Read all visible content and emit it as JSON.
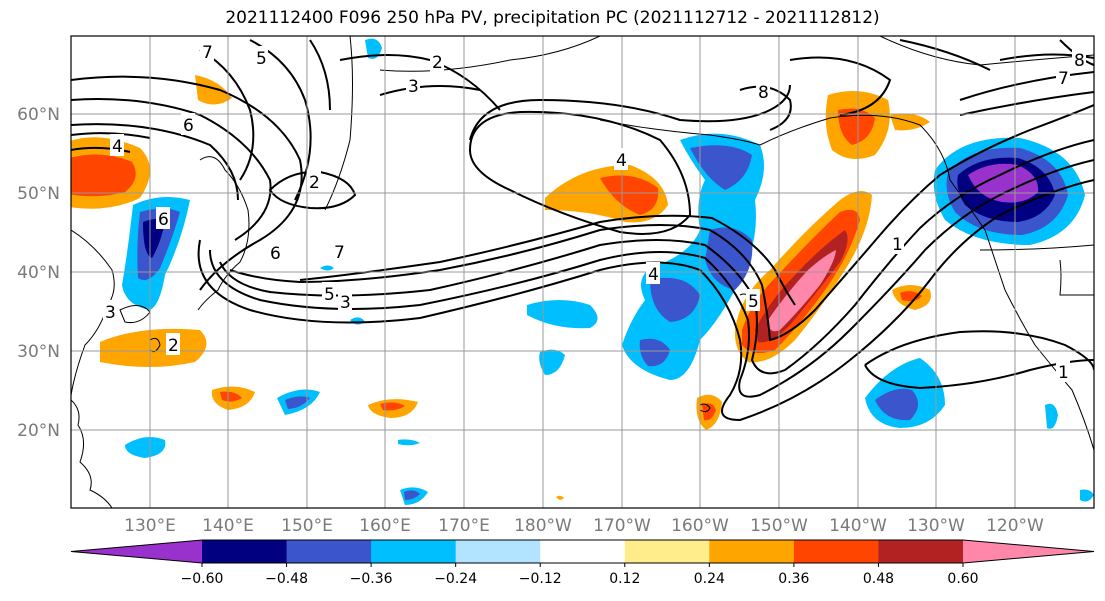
{
  "title": "2021112400 F096 250 hPa PV, precipitation PC (2021112712 - 2021112812)",
  "lat_labels": [
    "60°N",
    "50°N",
    "40°N",
    "30°N",
    "20°N"
  ],
  "lon_labels": [
    "130°E",
    "140°E",
    "150°E",
    "160°E",
    "170°E",
    "180°W",
    "170°W",
    "160°W",
    "150°W",
    "140°W",
    "130°W",
    "120°W"
  ],
  "colorbar": {
    "colors": [
      "#9932cc",
      "#000080",
      "#3b55cc",
      "#00bfff",
      "#b2e3ff",
      "#ffffff",
      "#ffec8b",
      "#ffa500",
      "#ff4500",
      "#b22222",
      "#ff88aa"
    ],
    "tick_labels": [
      "−0.60",
      "−0.48",
      "−0.36",
      "−0.24",
      "−0.12",
      "0.12",
      "0.24",
      "0.36",
      "0.48",
      "0.60"
    ]
  },
  "contour_labels": [
    "7",
    "5",
    "2",
    "3",
    "6",
    "4",
    "2",
    "8",
    "6",
    "7",
    "1",
    "6",
    "5",
    "3",
    "4",
    "3",
    "2",
    "4",
    "5",
    "1",
    "7",
    "8"
  ]
}
